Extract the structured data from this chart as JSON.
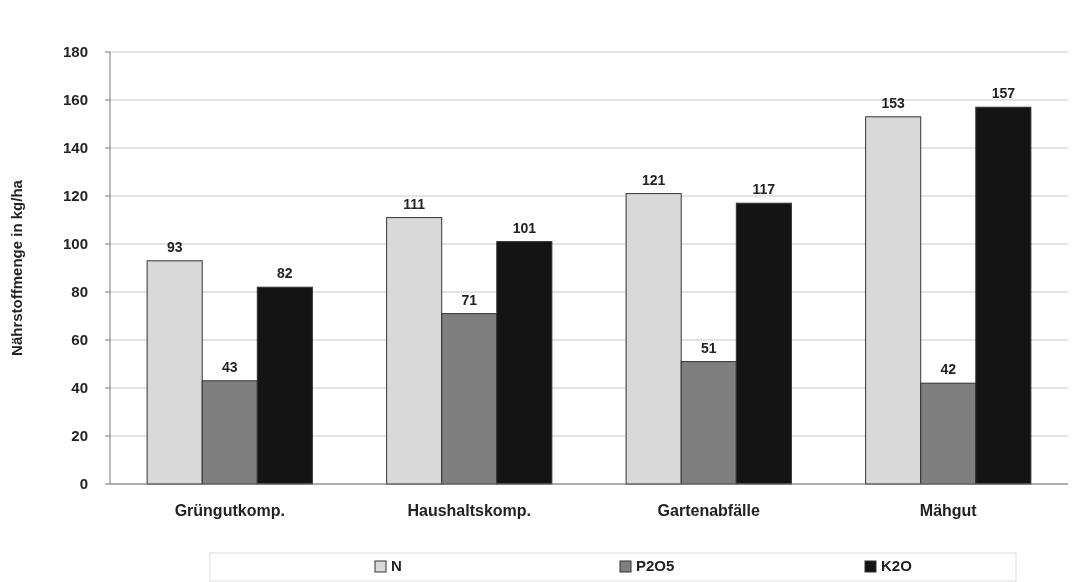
{
  "chart_data": {
    "type": "bar",
    "ylabel": "Nährstoffmenge in kg/ha",
    "categories": [
      "Grüngutkomp.",
      "Haushaltskomp.",
      "Gartenabfälle",
      "Mähgut"
    ],
    "series": [
      {
        "name": "N",
        "color": "#d9d9d9",
        "values": [
          93,
          111,
          121,
          153
        ]
      },
      {
        "name": "P2O5",
        "color": "#7f7f7f",
        "values": [
          43,
          71,
          51,
          42
        ]
      },
      {
        "name": "K2O",
        "color": "#141414",
        "values": [
          82,
          101,
          117,
          157
        ]
      }
    ],
    "ylim": [
      0,
      180
    ],
    "yticks": [
      0,
      20,
      40,
      60,
      80,
      100,
      120,
      140,
      160,
      180
    ],
    "grid": "y",
    "legend": "bottom",
    "data_labels": true
  }
}
